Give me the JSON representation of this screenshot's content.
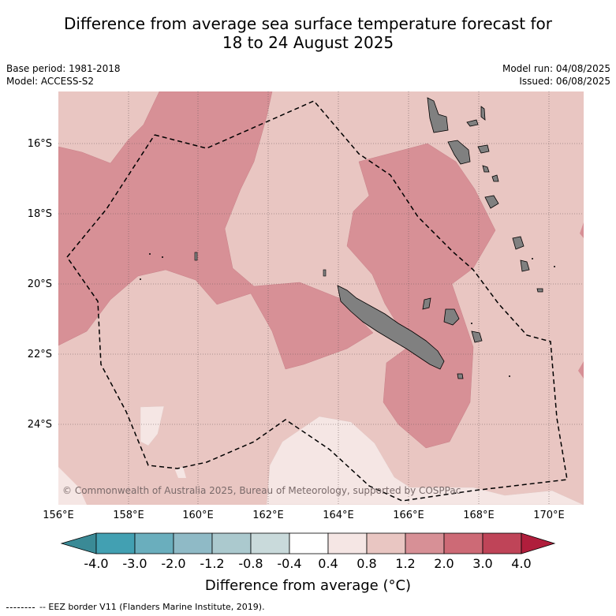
{
  "header": {
    "title_line1": "Difference from average sea surface temperature forecast for",
    "title_line2": "18 to 24 August 2025",
    "base_period": "Base period: 1981-2018",
    "model": "Model: ACCESS-S2",
    "model_run": "Model run: 04/08/2025",
    "issued": "Issued: 06/08/2025"
  },
  "map": {
    "copyright": "© Commonwealth of Australia 2025, Bureau of Meteorology, supported by COSPPac",
    "lat_labels": [
      "16°S",
      "18°S",
      "20°S",
      "22°S",
      "24°S"
    ],
    "lon_labels": [
      "156°E",
      "158°E",
      "160°E",
      "162°E",
      "164°E",
      "166°E",
      "168°E",
      "170°E"
    ]
  },
  "colorbar": {
    "ticks": [
      "-4.0",
      "-3.0",
      "-2.0",
      "-1.2",
      "-0.8",
      "-0.4",
      "0.4",
      "0.8",
      "1.2",
      "2.0",
      "3.0",
      "4.0"
    ],
    "colors": [
      "#42a0b2",
      "#6aaebd",
      "#8fbac6",
      "#abc9ce",
      "#c9dadb",
      "#ffffff",
      "#f5e6e4",
      "#e9c6c2",
      "#d79096",
      "#cd6a76",
      "#bf4458"
    ],
    "low_color": "#3a8a96",
    "high_color": "#b01e3c",
    "title": "Difference from average (°C)"
  },
  "legend": {
    "eez_label": "-- EEZ border V11 (Flanders Marine Institute, 2019)."
  },
  "colors": {
    "land": "#808080",
    "shade_low": "#f5e6e4",
    "shade_mid": "#e9c6c2",
    "shade_high": "#d79096"
  }
}
